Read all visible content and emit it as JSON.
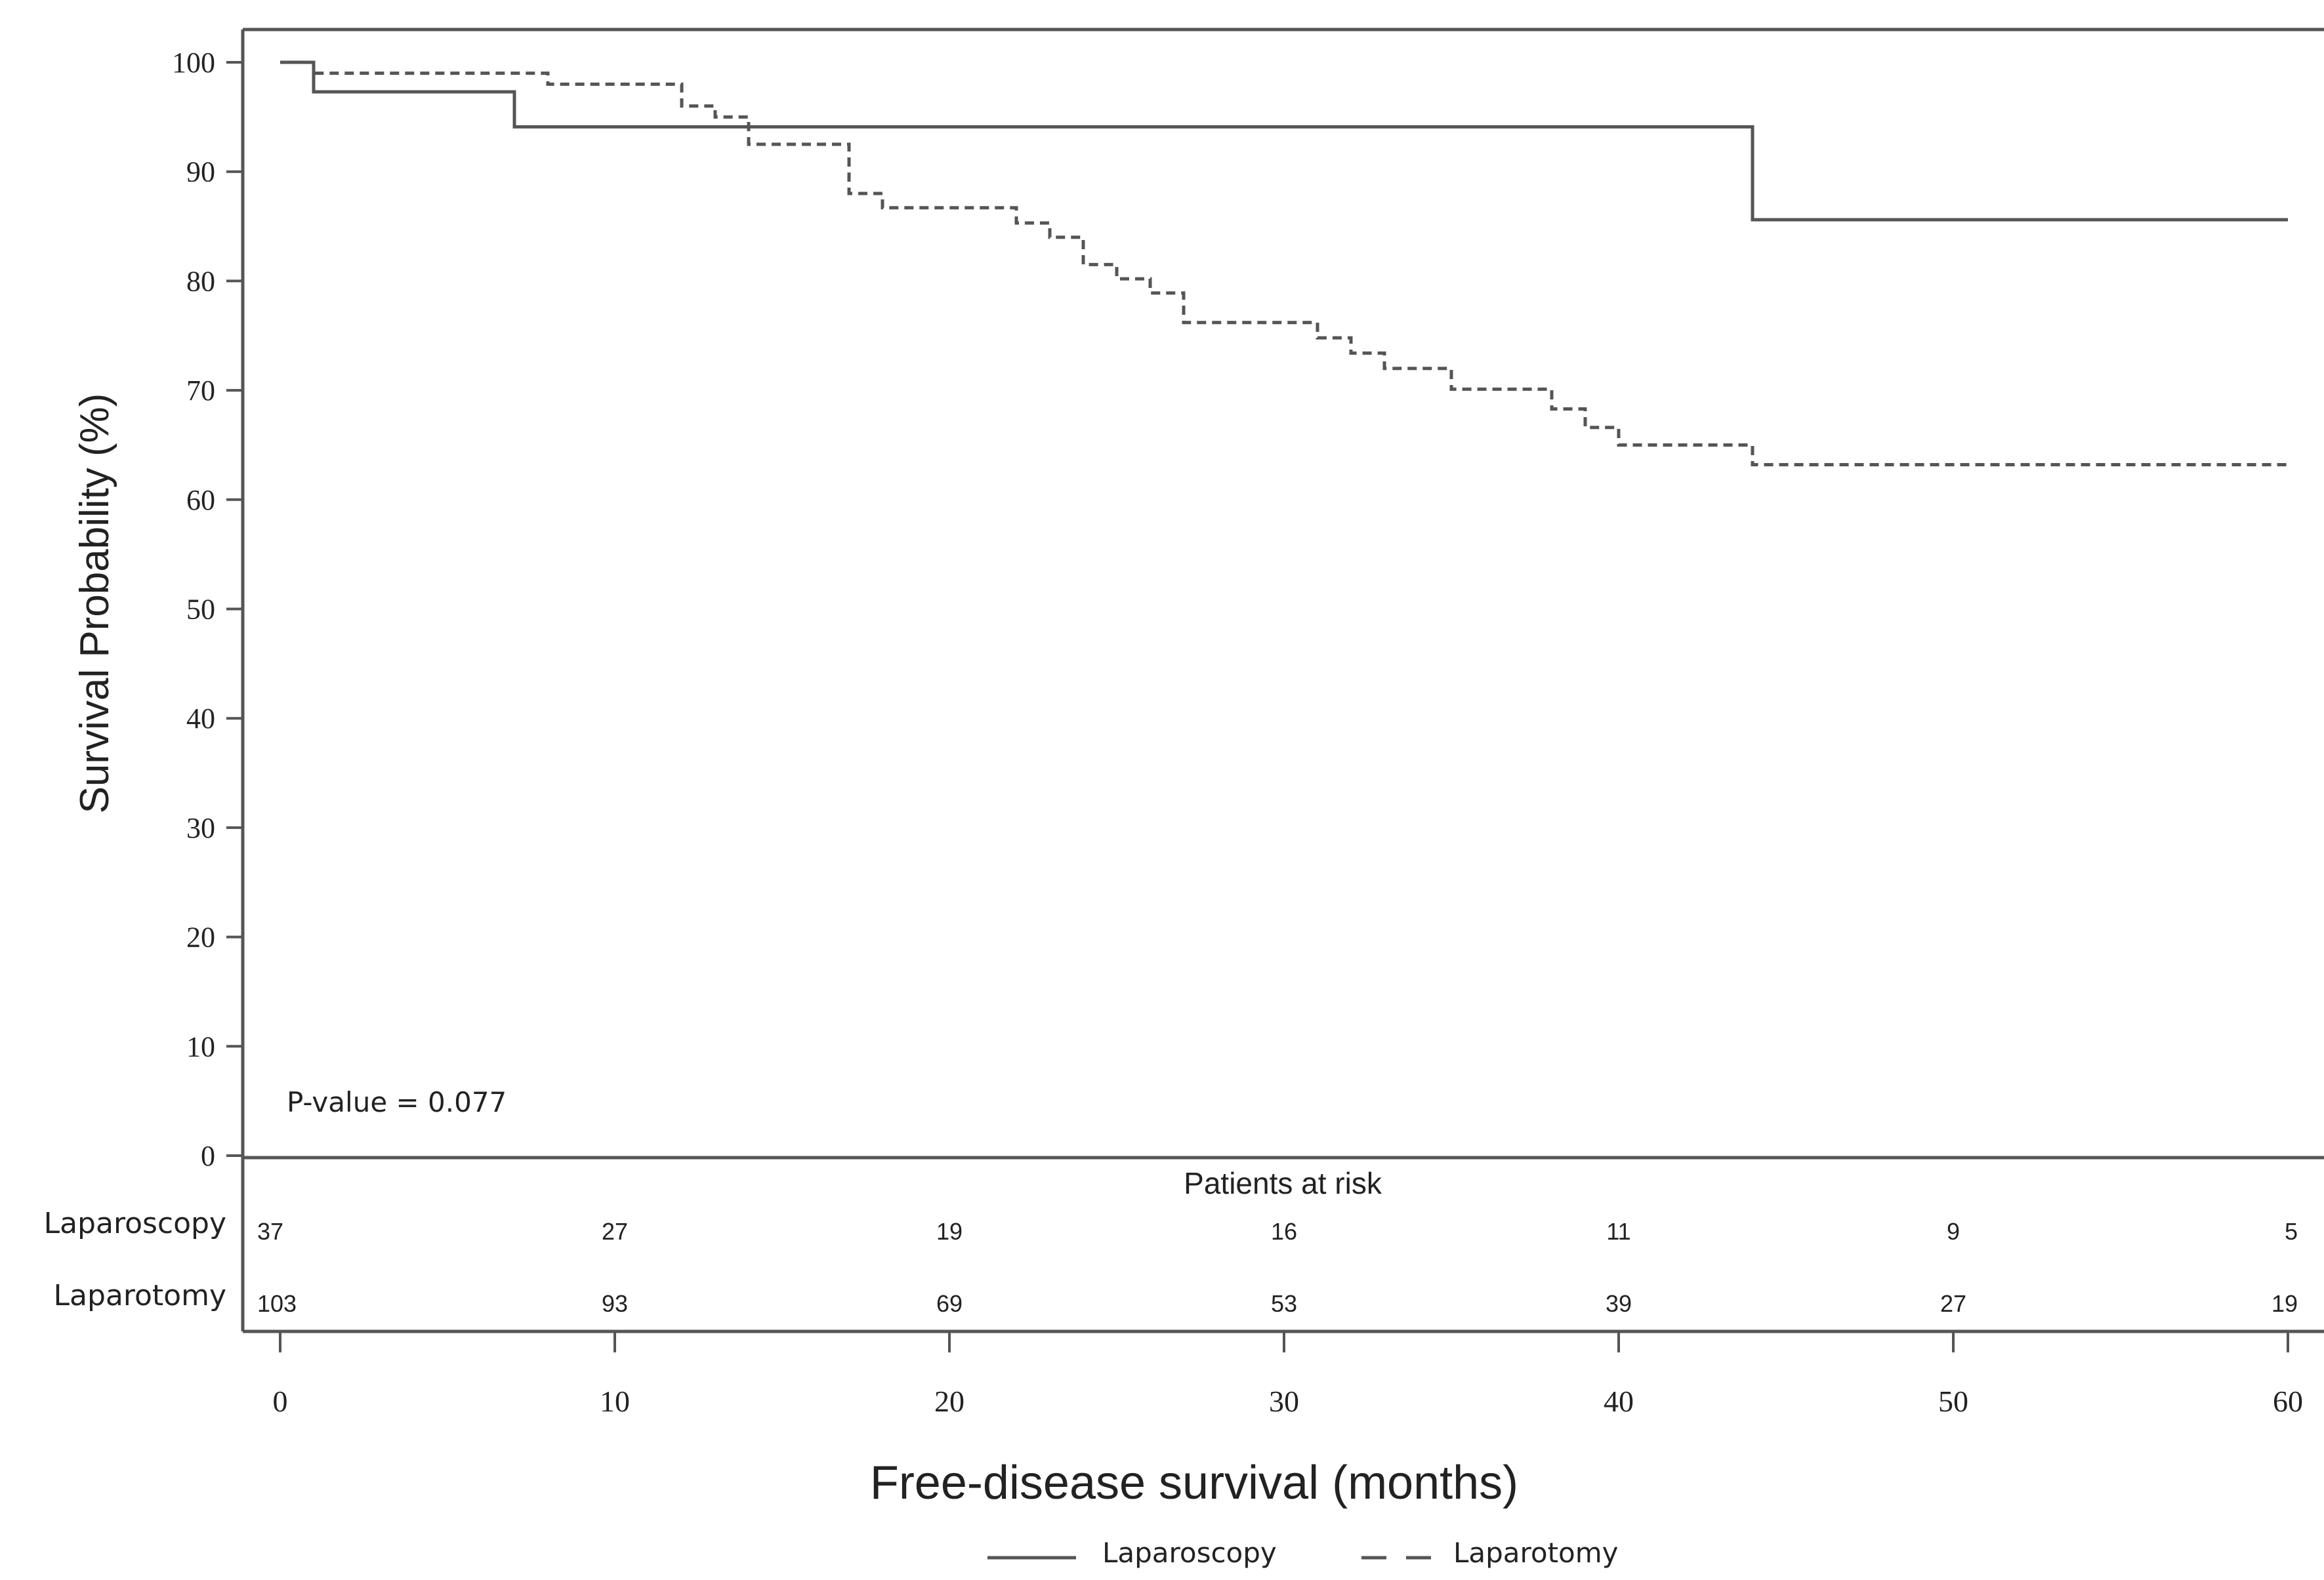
{
  "chart_data": {
    "type": "line",
    "subtype": "kaplan-meier step curve",
    "ylabel": "Survival Probability (%)",
    "xlabel": "Free-disease survival (months)",
    "xlim": [
      0,
      60
    ],
    "ylim": [
      0,
      100
    ],
    "x_ticks": [
      0,
      10,
      20,
      30,
      40,
      50,
      60
    ],
    "y_ticks": [
      0,
      10,
      20,
      30,
      40,
      50,
      60,
      70,
      80,
      90,
      100
    ],
    "grid": false,
    "annotation": "P-value = 0.077",
    "series": [
      {
        "name": "Laparoscopy",
        "line_style": "solid",
        "color": "#555555",
        "points": [
          [
            0,
            100
          ],
          [
            1,
            97.3
          ],
          [
            7,
            94.1
          ],
          [
            44,
            85.6
          ],
          [
            60,
            85.6
          ]
        ]
      },
      {
        "name": "Laparotomy",
        "line_style": "dashed",
        "color": "#555555",
        "points": [
          [
            0,
            100
          ],
          [
            1,
            99
          ],
          [
            8,
            98
          ],
          [
            12,
            96
          ],
          [
            13,
            95
          ],
          [
            14,
            92.5
          ],
          [
            17,
            88
          ],
          [
            18,
            86.7
          ],
          [
            22,
            85.3
          ],
          [
            23,
            84
          ],
          [
            24,
            81.5
          ],
          [
            25,
            80.2
          ],
          [
            26,
            78.9
          ],
          [
            27,
            76.2
          ],
          [
            31,
            74.8
          ],
          [
            32,
            73.4
          ],
          [
            33,
            72
          ],
          [
            35,
            70.1
          ],
          [
            38,
            68.3
          ],
          [
            39,
            66.6
          ],
          [
            40,
            65
          ],
          [
            44,
            63.2
          ],
          [
            60,
            63.2
          ]
        ]
      }
    ],
    "risk_table": {
      "title": "Patients at risk",
      "times": [
        0,
        10,
        20,
        30,
        40,
        50,
        60
      ],
      "rows": [
        {
          "label": "Laparoscopy",
          "values": [
            "37",
            "27",
            "19",
            "16",
            "11",
            "9",
            "5"
          ]
        },
        {
          "label": "Laparotomy",
          "values": [
            "103",
            "93",
            "69",
            "53",
            "39",
            "27",
            "19"
          ]
        }
      ]
    },
    "legend": {
      "placement": "bottom-center",
      "entries": [
        {
          "label": "Laparoscopy",
          "line_style": "solid"
        },
        {
          "label": "Laparotomy",
          "line_style": "dashed"
        }
      ]
    }
  }
}
